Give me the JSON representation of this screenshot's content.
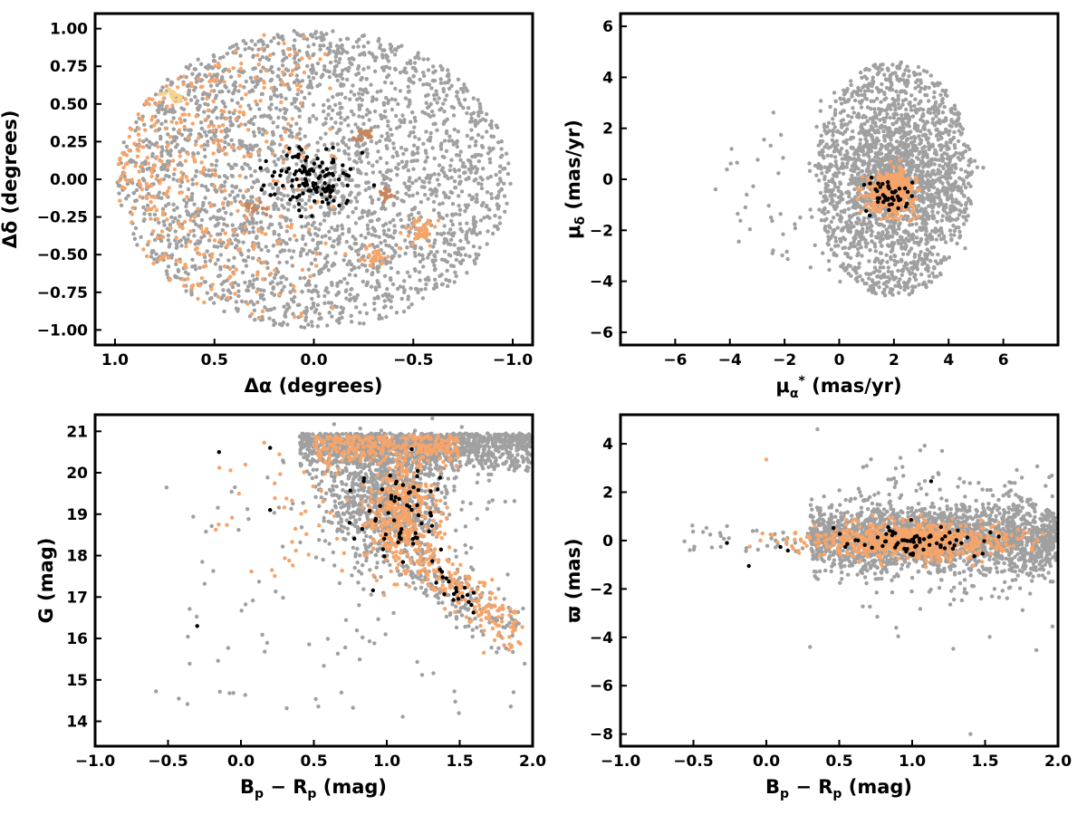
{
  "colors": {
    "gray": "#a0a0a0",
    "orange": "#f5a46a",
    "black": "#000000",
    "dark_orange": "#c7865c",
    "light_yellow": "#f5d38e"
  },
  "chart_data": [
    {
      "type": "scatter",
      "id": "position",
      "xlabel": "Δα (degrees)",
      "ylabel": "Δδ (degrees)",
      "xlim": [
        1.1,
        -1.1
      ],
      "ylim": [
        -1.1,
        1.1
      ],
      "x_inverted": true,
      "xticks": [
        1.0,
        0.5,
        0.0,
        -0.5,
        -1.0
      ],
      "xtick_labels": [
        "1.0",
        "0.5",
        "0.0",
        "−0.5",
        "−1.0"
      ],
      "yticks": [
        -1.0,
        -0.75,
        -0.5,
        -0.25,
        0.0,
        0.25,
        0.5,
        0.75,
        1.0
      ],
      "ytick_labels": [
        "−1.00",
        "−0.75",
        "−0.50",
        "−0.25",
        "0.00",
        "0.25",
        "0.50",
        "0.75",
        "1.00"
      ],
      "grid": false,
      "series": [
        {
          "color": "gray",
          "description_of_distribution": "uniform disk radius 1 deg",
          "count": 2600
        },
        {
          "color": "orange",
          "description_of_distribution": "east half of disk, dense at alpha>0.5",
          "count": 1300
        },
        {
          "color": "black",
          "description_of_distribution": "compact core near origin",
          "count": 120
        }
      ]
    },
    {
      "type": "scatter",
      "id": "proper_motion",
      "xlabel": "μα* (mas/yr)",
      "ylabel": "μδ (mas/yr)",
      "xlim": [
        -8,
        8
      ],
      "ylim": [
        -6.5,
        6.5
      ],
      "xticks": [
        -6,
        -4,
        -2,
        0,
        2,
        4,
        6
      ],
      "xtick_labels": [
        "−6",
        "−4",
        "−2",
        "0",
        "2",
        "4",
        "6"
      ],
      "yticks": [
        -6,
        -4,
        -2,
        0,
        2,
        4,
        6
      ],
      "ytick_labels": [
        "−6",
        "−4",
        "−2",
        "0",
        "2",
        "4",
        "6"
      ],
      "grid": false,
      "series": [
        {
          "color": "gray",
          "center": [
            2.0,
            0.0
          ],
          "radius": 2.9,
          "count": 2300
        },
        {
          "color": "orange",
          "center": [
            2.0,
            -0.5
          ],
          "radius": 1.0,
          "count": 500
        },
        {
          "color": "black",
          "center": [
            2.0,
            -0.5
          ],
          "radius": 0.8,
          "count": 45
        }
      ]
    },
    {
      "type": "scatter",
      "id": "cmd",
      "xlabel": "Bp − Rp (mag)",
      "ylabel": "G (mag)",
      "xlim": [
        -1.0,
        2.0
      ],
      "ylim": [
        13.4,
        21.4
      ],
      "y_inverted": false,
      "xticks": [
        -1.0,
        -0.5,
        0.0,
        0.5,
        1.0,
        1.5,
        2.0
      ],
      "xtick_labels": [
        "−1.0",
        "−0.5",
        "0.0",
        "0.5",
        "1.0",
        "1.5",
        "2.0"
      ],
      "yticks": [
        14,
        15,
        16,
        17,
        18,
        19,
        20,
        21
      ],
      "ytick_labels": [
        "14",
        "15",
        "16",
        "17",
        "18",
        "19",
        "20",
        "21"
      ],
      "grid": false,
      "series": [
        {
          "color": "gray",
          "count": 2500
        },
        {
          "color": "orange",
          "count": 900
        },
        {
          "color": "black",
          "count": 90
        }
      ]
    },
    {
      "type": "scatter",
      "id": "parallax",
      "xlabel": "Bp − Rp (mag)",
      "ylabel": "ϖ (mas)",
      "xlim": [
        -1.0,
        2.0
      ],
      "ylim": [
        -8.5,
        5.2
      ],
      "xticks": [
        -1.0,
        -0.5,
        0.0,
        0.5,
        1.0,
        1.5,
        2.0
      ],
      "xtick_labels": [
        "−1.0",
        "−0.5",
        "0.0",
        "0.5",
        "1.0",
        "1.5",
        "2.0"
      ],
      "yticks": [
        -8,
        -6,
        -4,
        -2,
        0,
        2,
        4
      ],
      "ytick_labels": [
        "−8",
        "−6",
        "−4",
        "−2",
        "0",
        "2",
        "4"
      ],
      "grid": false,
      "series": [
        {
          "color": "gray",
          "count": 2300
        },
        {
          "color": "orange",
          "count": 800
        },
        {
          "color": "black",
          "count": 70
        }
      ]
    }
  ]
}
